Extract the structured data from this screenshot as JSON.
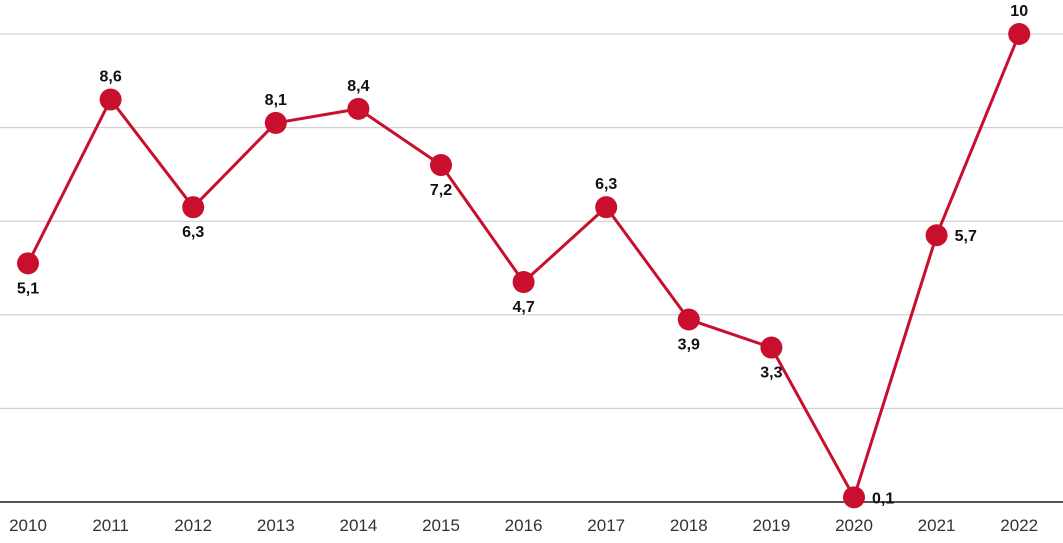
{
  "chart_data": {
    "type": "line",
    "categories": [
      "2010",
      "2011",
      "2012",
      "2013",
      "2014",
      "2015",
      "2016",
      "2017",
      "2018",
      "2019",
      "2020",
      "2021",
      "2022"
    ],
    "values": [
      5.1,
      8.6,
      6.3,
      8.1,
      8.4,
      7.2,
      4.7,
      6.3,
      3.9,
      3.3,
      0.1,
      5.7,
      10
    ],
    "value_labels": [
      "5,1",
      "8,6",
      "6,3",
      "8,1",
      "8,4",
      "7,2",
      "4,7",
      "6,3",
      "3,9",
      "3,3",
      "0,1",
      "5,7",
      "10"
    ],
    "title": "",
    "xlabel": "",
    "ylabel": "",
    "ylim": [
      0,
      10
    ],
    "y_gridlines": [
      0,
      2,
      4,
      6,
      8,
      10
    ],
    "y_tick_labels_visible": false,
    "grid": true,
    "legend": "none",
    "colors": {
      "line": "#c8102e",
      "marker": "#c8102e",
      "grid": "#c8c8c8",
      "baseline": "#555555"
    }
  }
}
